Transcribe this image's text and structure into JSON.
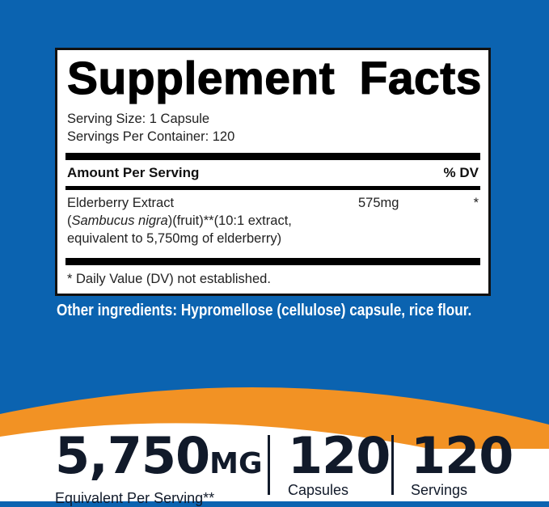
{
  "colors": {
    "background": "#0b63b0",
    "accent": "#f29224",
    "label_border": "#111111",
    "stat_text": "#111a2a"
  },
  "label": {
    "title": "Supplement Facts",
    "serving_size": "Serving Size: 1 Capsule",
    "servings_per_container": "Servings Per Container: 120",
    "amount_header": "Amount Per Serving",
    "dv_header": "% DV",
    "ingredient": {
      "name": "Elderberry Extract",
      "latin_open": "(",
      "latin": "Sambucus nigra",
      "detail": ")(fruit)**(10:1 extract,",
      "detail2": "equivalent to 5,750mg of elderberry)",
      "amount": "575mg",
      "dv": "*"
    },
    "footnote": "* Daily Value (DV) not established."
  },
  "other_ingredients": "Other ingredients: Hypromellose (cellulose) capsule, rice flour.",
  "stats": [
    {
      "value": "5,750",
      "unit": "MG",
      "label": "Equivalent Per Serving**"
    },
    {
      "value": "120",
      "label": "Capsules"
    },
    {
      "value": "120",
      "label": "Servings"
    }
  ]
}
